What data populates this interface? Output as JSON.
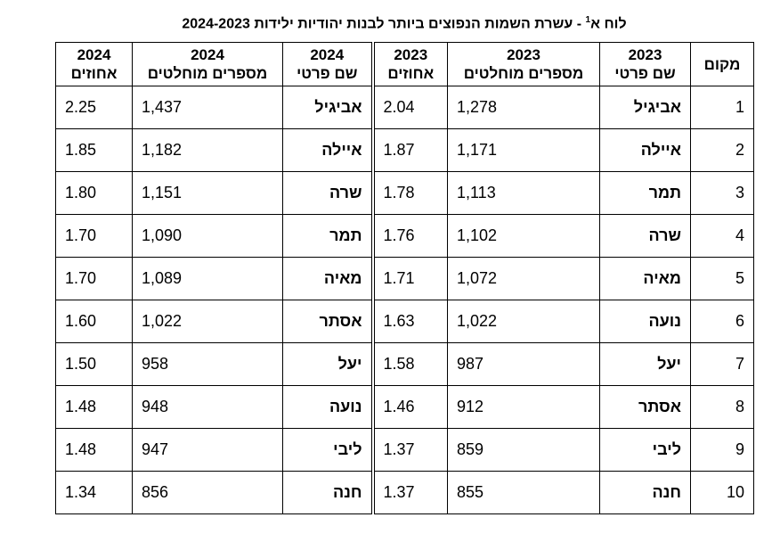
{
  "title": {
    "prefix": "לוח א",
    "footnote": "1",
    "text": " - עשרת השמות הנפוצים ביותר לבנות יהודיות ילידות 2024-2023"
  },
  "table": {
    "header": [
      {
        "label": "מקום"
      },
      {
        "year": "2023",
        "label": "שם פרטי"
      },
      {
        "year": "2023",
        "label": "מספרים מוחלטים"
      },
      {
        "year": "2023",
        "label": "אחוזים"
      },
      {
        "year": "2024",
        "label": "שם פרטי"
      },
      {
        "year": "2024",
        "label": "מספרים מוחלטים"
      },
      {
        "year": "2024",
        "label": "אחוזים"
      }
    ],
    "rows": [
      [
        "1",
        "אביגיל",
        "1,278",
        "2.04",
        "אביגיל",
        "1,437",
        "2.25"
      ],
      [
        "2",
        "איילה",
        "1,171",
        "1.87",
        "איילה",
        "1,182",
        "1.85"
      ],
      [
        "3",
        "תמר",
        "1,113",
        "1.78",
        "שרה",
        "1,151",
        "1.80"
      ],
      [
        "4",
        "שרה",
        "1,102",
        "1.76",
        "תמר",
        "1,090",
        "1.70"
      ],
      [
        "5",
        "מאיה",
        "1,072",
        "1.71",
        "מאיה",
        "1,089",
        "1.70"
      ],
      [
        "6",
        "נועה",
        "1,022",
        "1.63",
        "אסתר",
        "1,022",
        "1.60"
      ],
      [
        "7",
        "יעל",
        "987",
        "1.58",
        "יעל",
        "958",
        "1.50"
      ],
      [
        "8",
        "אסתר",
        "912",
        "1.46",
        "נועה",
        "948",
        "1.48"
      ],
      [
        "9",
        "ליבי",
        "859",
        "1.37",
        "ליבי",
        "947",
        "1.48"
      ],
      [
        "10",
        "חנה",
        "855",
        "1.37",
        "חנה",
        "856",
        "1.34"
      ]
    ]
  }
}
